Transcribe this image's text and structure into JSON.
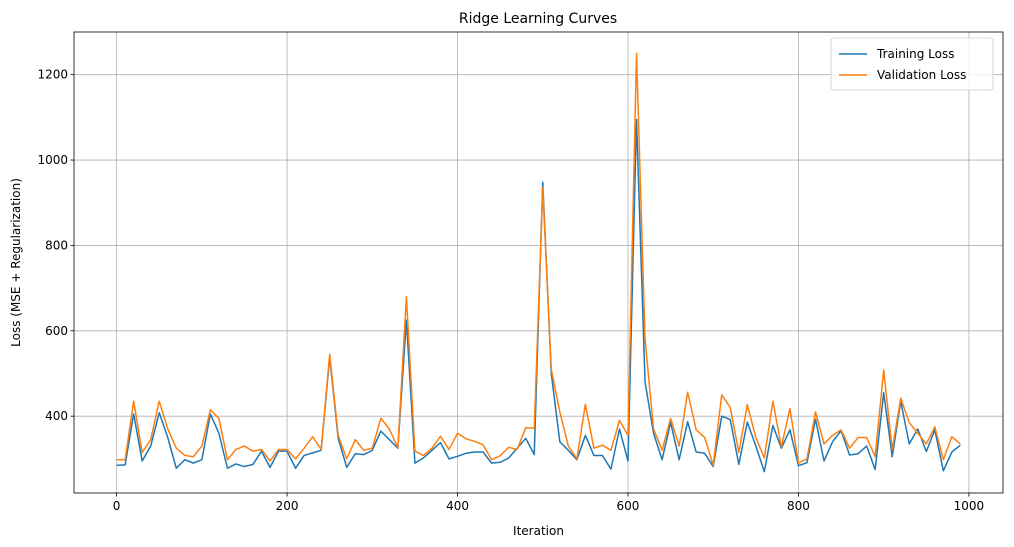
{
  "chart_data": {
    "type": "line",
    "title": "Ridge Learning Curves",
    "xlabel": "Iteration",
    "ylabel": "Loss (MSE + Regularization)",
    "xlim": [
      -50,
      1040
    ],
    "ylim": [
      220,
      1300
    ],
    "xticks": [
      0,
      200,
      400,
      600,
      800,
      1000
    ],
    "yticks": [
      400,
      600,
      800,
      1000,
      1200
    ],
    "grid": true,
    "legend_position": "top-right",
    "x": [
      0,
      10,
      20,
      30,
      40,
      50,
      60,
      70,
      80,
      90,
      100,
      110,
      120,
      130,
      140,
      150,
      160,
      170,
      180,
      190,
      200,
      210,
      220,
      230,
      240,
      250,
      260,
      270,
      280,
      290,
      300,
      310,
      320,
      330,
      340,
      350,
      360,
      370,
      380,
      390,
      400,
      410,
      420,
      430,
      440,
      450,
      460,
      470,
      480,
      490,
      500,
      510,
      520,
      530,
      540,
      550,
      560,
      570,
      580,
      590,
      600,
      610,
      620,
      630,
      640,
      650,
      660,
      670,
      680,
      690,
      700,
      710,
      720,
      730,
      740,
      750,
      760,
      770,
      780,
      790,
      800,
      810,
      820,
      830,
      840,
      850,
      860,
      870,
      880,
      890,
      900,
      910,
      920,
      930,
      940,
      950,
      960,
      970,
      980,
      990
    ],
    "series": [
      {
        "name": "Training Loss",
        "color": "#1f77b4",
        "values": [
          285,
          286,
          405,
          295,
          330,
          408,
          350,
          278,
          298,
          290,
          298,
          405,
          360,
          278,
          288,
          282,
          287,
          318,
          280,
          318,
          318,
          278,
          308,
          314,
          320,
          538,
          348,
          280,
          312,
          310,
          320,
          365,
          345,
          325,
          625,
          290,
          302,
          320,
          338,
          300,
          306,
          313,
          316,
          316,
          290,
          292,
          302,
          325,
          348,
          310,
          948,
          500,
          340,
          320,
          298,
          355,
          308,
          308,
          276,
          370,
          295,
          1095,
          480,
          360,
          298,
          385,
          298,
          387,
          316,
          313,
          282,
          400,
          392,
          287,
          386,
          330,
          270,
          378,
          325,
          368,
          284,
          291,
          393,
          295,
          340,
          366,
          309,
          312,
          330,
          275,
          455,
          305,
          435,
          335,
          370,
          317,
          368,
          272,
          316,
          332
        ]
      },
      {
        "name": "Validation Loss",
        "color": "#ff7f0e",
        "values": [
          298,
          298,
          435,
          315,
          345,
          435,
          370,
          325,
          308,
          305,
          330,
          415,
          395,
          298,
          322,
          330,
          318,
          322,
          295,
          322,
          322,
          300,
          325,
          352,
          322,
          545,
          355,
          300,
          345,
          320,
          325,
          395,
          370,
          326,
          680,
          318,
          308,
          325,
          353,
          322,
          360,
          347,
          341,
          333,
          298,
          307,
          327,
          322,
          373,
          372,
          935,
          510,
          410,
          330,
          300,
          428,
          325,
          332,
          320,
          390,
          355,
          1250,
          580,
          370,
          320,
          395,
          330,
          456,
          368,
          350,
          285,
          450,
          420,
          315,
          427,
          350,
          302,
          435,
          328,
          418,
          290,
          300,
          410,
          335,
          355,
          368,
          325,
          350,
          350,
          305,
          508,
          322,
          442,
          385,
          360,
          335,
          375,
          298,
          352,
          335
        ]
      }
    ]
  }
}
